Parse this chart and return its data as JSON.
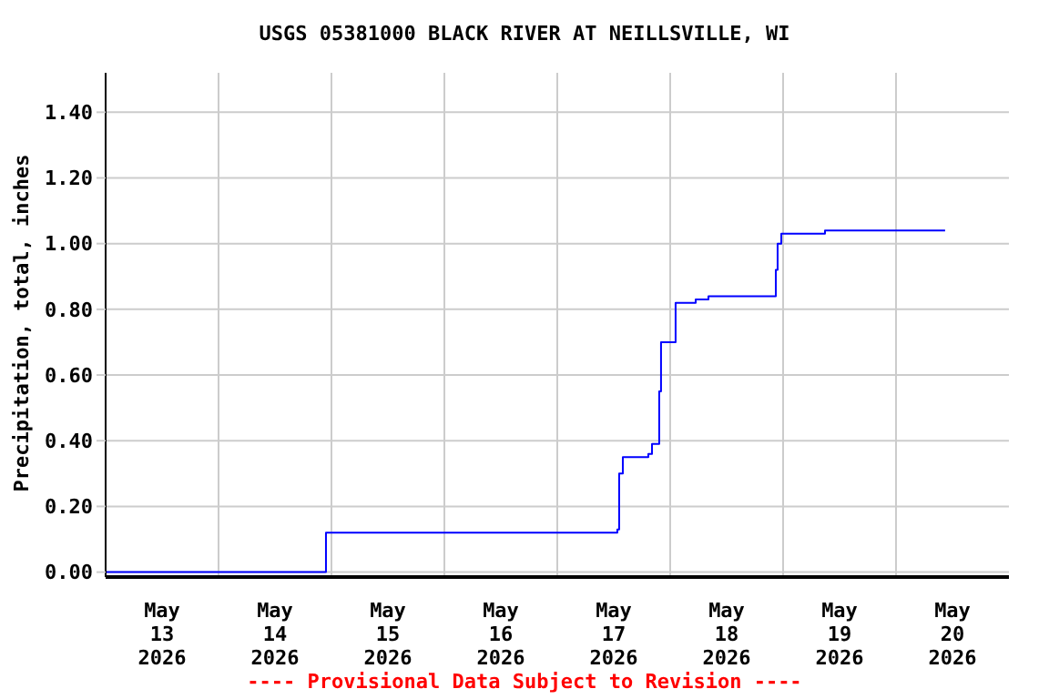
{
  "chart_data": {
    "type": "step",
    "title": "USGS 05381000 BLACK RIVER AT NEILLSVILLE, WI",
    "ylabel": "Precipitation, total, inches",
    "annotations": [
      "---- Provisional Data Subject to Revision ----"
    ],
    "x": [
      "2026-05-13T00:00",
      "2026-05-14T22:50",
      "2026-05-17T12:23",
      "2026-05-17T12:46",
      "2026-05-17T13:09",
      "2026-05-17T13:56",
      "2026-05-17T19:21",
      "2026-05-17T20:08",
      "2026-05-17T21:40",
      "2026-05-17T22:03",
      "2026-05-18T00:46",
      "2026-05-18T01:09",
      "2026-05-18T05:25",
      "2026-05-18T08:08",
      "2026-05-18T22:27",
      "2026-05-18T22:50",
      "2026-05-18T23:37",
      "2026-05-19T08:54",
      "2026-05-20T10:26"
    ],
    "series": [
      {
        "color": "#0000ff",
        "values": [
          0,
          0.12,
          0.12,
          0.13,
          0.3,
          0.35,
          0.36,
          0.39,
          0.55,
          0.7,
          0.7,
          0.82,
          0.83,
          0.84,
          0.92,
          1.0,
          1.03,
          1.04,
          1.04
        ]
      }
    ],
    "xlim": [
      "2026-05-13T00:00",
      "2026-05-21T00:00"
    ],
    "xticks": [
      {
        "value": "2026-05-13T12:00",
        "label": "May\n13\n2026"
      },
      {
        "value": "2026-05-14T00:00",
        "label": null
      },
      {
        "value": "2026-05-14T12:00",
        "label": "May\n14\n2026"
      },
      {
        "value": "2026-05-15T00:00",
        "label": null
      },
      {
        "value": "2026-05-15T12:00",
        "label": "May\n15\n2026"
      },
      {
        "value": "2026-05-16T00:00",
        "label": null
      },
      {
        "value": "2026-05-16T12:00",
        "label": "May\n16\n2026"
      },
      {
        "value": "2026-05-17T00:00",
        "label": null
      },
      {
        "value": "2026-05-17T12:00",
        "label": "May\n17\n2026"
      },
      {
        "value": "2026-05-18T00:00",
        "label": null
      },
      {
        "value": "2026-05-18T12:00",
        "label": "May\n18\n2026"
      },
      {
        "value": "2026-05-19T00:00",
        "label": null
      },
      {
        "value": "2026-05-19T12:00",
        "label": "May\n19\n2026"
      },
      {
        "value": "2026-05-20T00:00",
        "label": null
      },
      {
        "value": "2026-05-20T12:00",
        "label": "May\n20\n2026"
      }
    ],
    "ylim": [
      -0.015,
      1.52
    ],
    "yticks": [
      {
        "value": 0,
        "label": "0.00"
      },
      {
        "value": 0.2,
        "label": "0.20"
      },
      {
        "value": 0.4,
        "label": "0.40"
      },
      {
        "value": 0.6,
        "label": "0.60"
      },
      {
        "value": 0.8,
        "label": "0.80"
      },
      {
        "value": 1,
        "label": "1.00"
      },
      {
        "value": 1.2,
        "label": "1.20"
      },
      {
        "value": 1.4,
        "label": "1.40"
      }
    ],
    "grid": true
  }
}
